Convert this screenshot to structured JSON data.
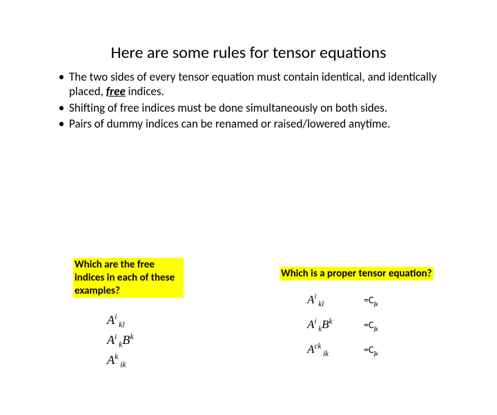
{
  "title": "Here are some rules for tensor equations",
  "bullets": [
    {
      "pre": "The two sides of every tensor equation must contain identical, and identically placed, ",
      "em": "free",
      "post": " indices."
    },
    {
      "pre": "Shifting of free indices must be done simultaneously on both sides.",
      "em": "",
      "post": ""
    },
    {
      "pre": "Pairs of dummy indices can be renamed or raised/lowered anytime.",
      "em": "",
      "post": ""
    }
  ],
  "question_left": "Which are the free indices in each of these examples?",
  "question_right": "Which is a proper tensor equation?",
  "left_examples": [
    {
      "html": "A<sup>i</sup><sub>&nbsp;kl</sub>"
    },
    {
      "html": "A<sup>i</sup><sub>&nbsp;k</sub>B<sup>k</sup>"
    },
    {
      "html": "A<sup>k</sup><sub>&nbsp;ik</sub>"
    }
  ],
  "right_equations": [
    {
      "lhs": "A<sup>i</sup><sub>&nbsp;kl</sub>",
      "rhs": "=C<sub>jk</sub>"
    },
    {
      "lhs": "A<sup>i</sup><sub>&nbsp;k</sub>B<sup>k</sup>",
      "rhs": "=C<sub>jk</sub>"
    },
    {
      "lhs": "A<sup>ck</sup><sub>&nbsp;ik</sub>",
      "rhs": "=C<sub>jk</sub>"
    }
  ],
  "colors": {
    "background": "#ffffff",
    "text": "#000000",
    "highlight": "#ffff00"
  },
  "typography": {
    "title_fontsize": 24,
    "body_fontsize": 17,
    "question_fontsize": 15
  }
}
